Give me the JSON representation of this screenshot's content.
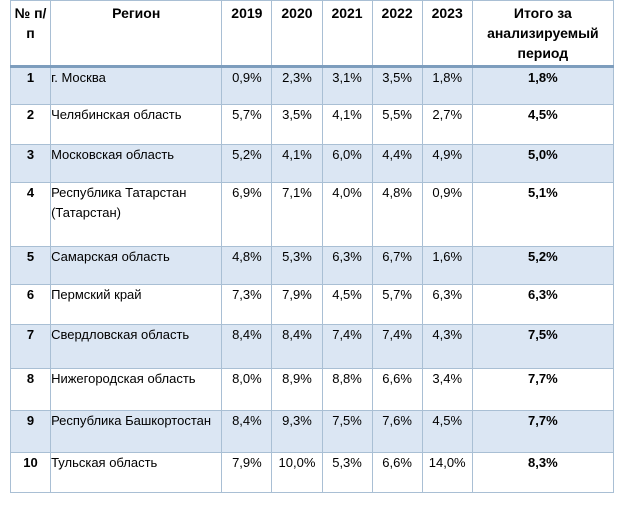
{
  "header": {
    "num": "№ п/п",
    "region": "Регион",
    "years": [
      "2019",
      "2020",
      "2021",
      "2022",
      "2023"
    ],
    "total": "Итого за анализируемый период"
  },
  "colors": {
    "row_shade": "#dbe6f3",
    "border": "#a9bfd4"
  },
  "rows": [
    {
      "num": "1",
      "region": "г. Москва",
      "v": [
        "0,9%",
        "2,3%",
        "3,1%",
        "3,5%",
        "1,8%"
      ],
      "total": "1,8%"
    },
    {
      "num": "2",
      "region": "Челябинская область",
      "v": [
        "5,7%",
        "3,5%",
        "4,1%",
        "5,5%",
        "2,7%"
      ],
      "total": "4,5%"
    },
    {
      "num": "3",
      "region": "Московская область",
      "v": [
        "5,2%",
        "4,1%",
        "6,0%",
        "4,4%",
        "4,9%"
      ],
      "total": "5,0%"
    },
    {
      "num": "4",
      "region": "Республика Татарстан (Татарстан)",
      "v": [
        "6,9%",
        "7,1%",
        "4,0%",
        "4,8%",
        "0,9%"
      ],
      "total": "5,1%"
    },
    {
      "num": "5",
      "region": "Самарская область",
      "v": [
        "4,8%",
        "5,3%",
        "6,3%",
        "6,7%",
        "1,6%"
      ],
      "total": "5,2%"
    },
    {
      "num": "6",
      "region": "Пермский край",
      "v": [
        "7,3%",
        "7,9%",
        "4,5%",
        "5,7%",
        "6,3%"
      ],
      "total": "6,3%"
    },
    {
      "num": "7",
      "region": "Свердловская область",
      "v": [
        "8,4%",
        "8,4%",
        "7,4%",
        "7,4%",
        "4,3%"
      ],
      "total": "7,5%"
    },
    {
      "num": "8",
      "region": "Нижегородская область",
      "v": [
        "8,0%",
        "8,9%",
        "8,8%",
        "6,6%",
        "3,4%"
      ],
      "total": "7,7%"
    },
    {
      "num": "9",
      "region": "Республика Башкортостан",
      "v": [
        "8,4%",
        "9,3%",
        "7,5%",
        "7,6%",
        "4,5%"
      ],
      "total": "7,7%"
    },
    {
      "num": "10",
      "region": "Тульская область",
      "v": [
        "7,9%",
        "10,0%",
        "5,3%",
        "6,6%",
        "14,0%"
      ],
      "total": "8,3%"
    }
  ]
}
